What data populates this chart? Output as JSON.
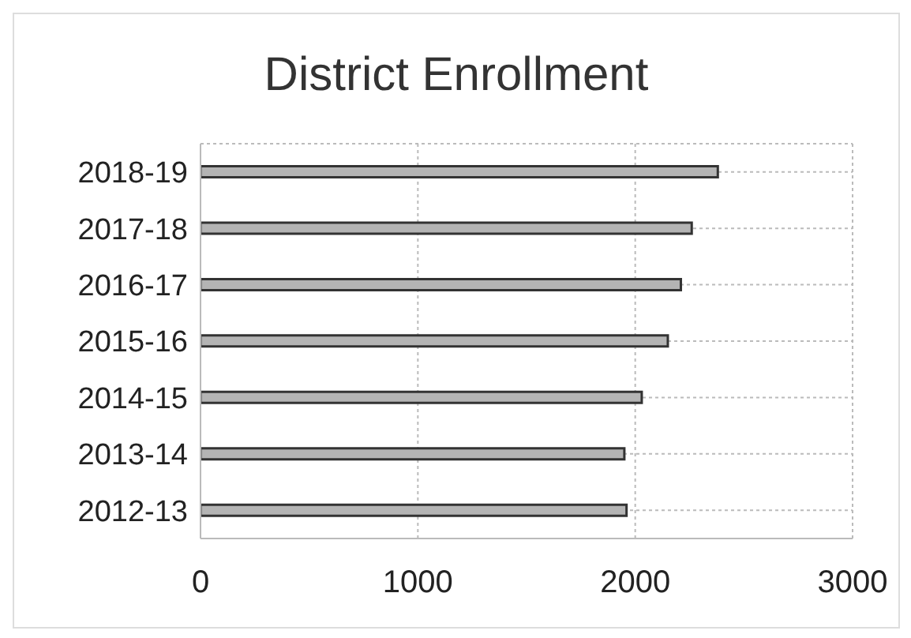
{
  "chart_data": {
    "type": "bar",
    "orientation": "horizontal",
    "title": "District Enrollment",
    "categories": [
      "2018-19",
      "2017-18",
      "2016-17",
      "2015-16",
      "2014-15",
      "2013-14",
      "2012-13"
    ],
    "values": [
      2380,
      2260,
      2210,
      2150,
      2030,
      1950,
      1960
    ],
    "color": "#b4b4b4",
    "xlim": [
      0,
      3000
    ],
    "xticks": [
      0,
      1000,
      2000,
      3000
    ],
    "grid": true
  }
}
